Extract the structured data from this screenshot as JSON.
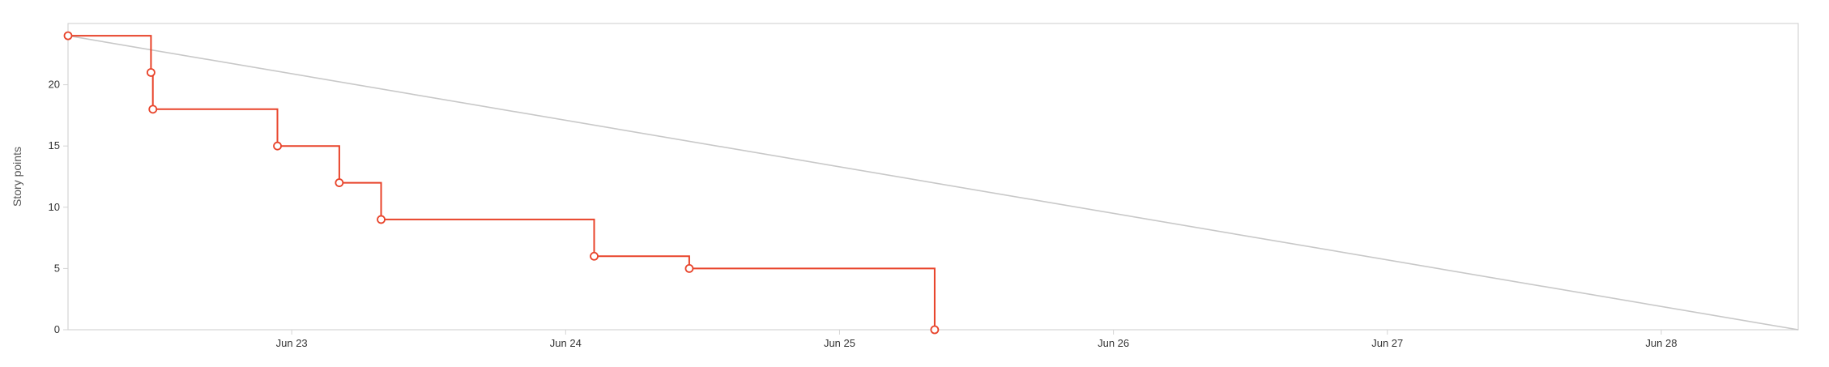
{
  "chart_data": {
    "type": "line",
    "title": "",
    "xlabel": "",
    "ylabel": "Story points",
    "x_tick_labels": [
      "Jun 23",
      "Jun 24",
      "Jun 25",
      "Jun 26",
      "Jun 27",
      "Jun 28"
    ],
    "y_ticks": [
      0,
      5,
      10,
      15,
      20
    ],
    "xlim": [
      "Jun 22 16:24",
      "Jun 29 00:00"
    ],
    "ylim": [
      0,
      25
    ],
    "grid": false,
    "series": [
      {
        "step": true,
        "color": "#e8432a",
        "marker": "open-circle",
        "points": [
          {
            "x": "Jun 22 16:24",
            "y": 24
          },
          {
            "x": "Jun 22 23:40",
            "y": 21
          },
          {
            "x": "Jun 22 23:50",
            "y": 18
          },
          {
            "x": "Jun 23 10:45",
            "y": 15
          },
          {
            "x": "Jun 23 16:10",
            "y": 12
          },
          {
            "x": "Jun 23 19:50",
            "y": 9
          },
          {
            "x": "Jun 24 14:30",
            "y": 6
          },
          {
            "x": "Jun 24 22:50",
            "y": 5
          },
          {
            "x": "Jun 25 20:20",
            "y": 0
          }
        ]
      },
      {
        "step": false,
        "color": "#c8c8c8",
        "marker": "none",
        "points": [
          {
            "x": "Jun 22 16:24",
            "y": 24
          },
          {
            "x": "Jun 29 00:00",
            "y": 0
          }
        ]
      }
    ]
  }
}
